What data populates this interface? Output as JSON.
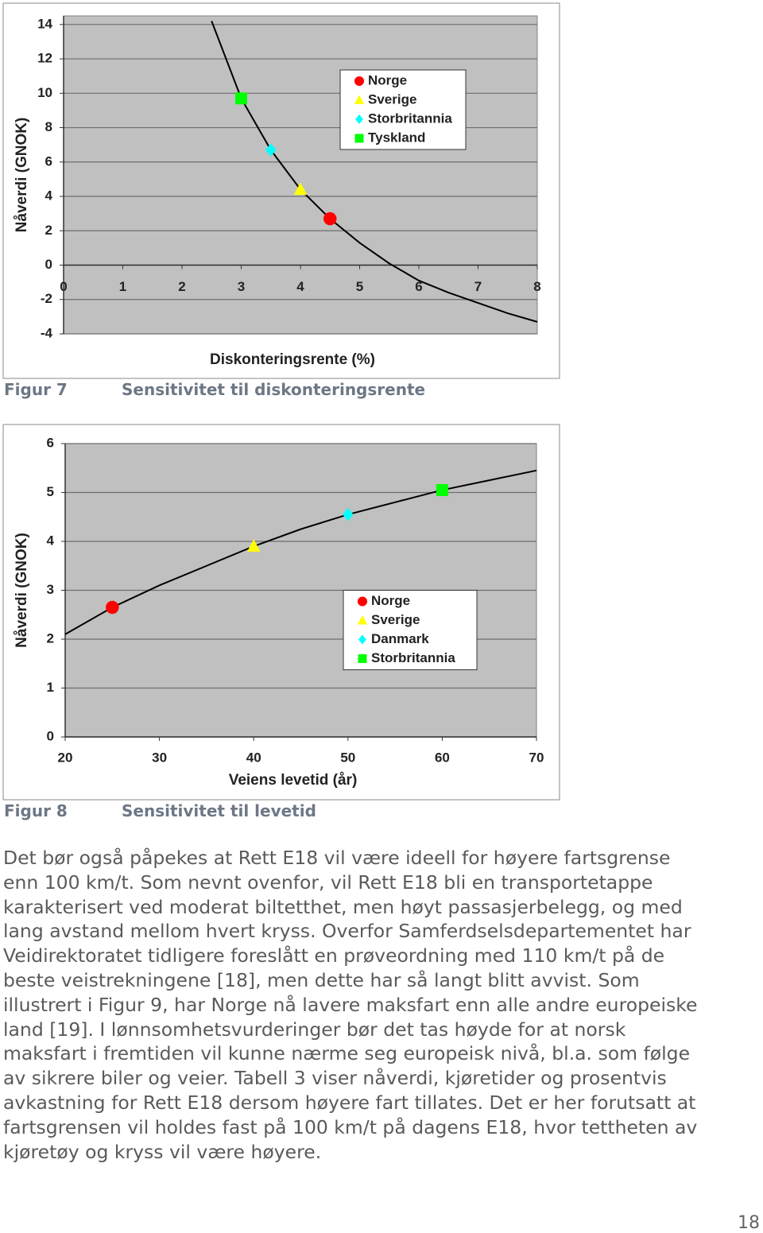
{
  "chart_data": [
    {
      "type": "scatter",
      "xlabel": "Diskonteringsrente (%)",
      "ylabel": "Nåverdi (GNOK)",
      "xlim": [
        0,
        8
      ],
      "xticks": [
        0,
        1,
        2,
        3,
        4,
        5,
        6,
        7,
        8
      ],
      "ylim": [
        -4,
        14.5
      ],
      "yticks": [
        -4,
        -2,
        0,
        2,
        4,
        6,
        8,
        10,
        12,
        14
      ],
      "grid": true,
      "legend": "upper right",
      "series": [
        {
          "name": "Norge",
          "color": "#ff0000",
          "marker": "circle",
          "x": [
            4.5
          ],
          "values": [
            2.7
          ]
        },
        {
          "name": "Sverige",
          "color": "#ffff00",
          "marker": "triangle",
          "x": [
            4
          ],
          "values": [
            4.4
          ]
        },
        {
          "name": "Storbritannia",
          "color": "#00ffff",
          "marker": "diamond",
          "x": [
            3.5
          ],
          "values": [
            6.7
          ]
        },
        {
          "name": "Tyskland",
          "color": "#00ff00",
          "marker": "square",
          "x": [
            3
          ],
          "values": [
            9.7
          ]
        }
      ],
      "curve": {
        "color": "#000000",
        "x": [
          2.5,
          3,
          3.5,
          4,
          4.5,
          5,
          5.5,
          6,
          6.5,
          7,
          7.5,
          8
        ],
        "values": [
          14.2,
          9.7,
          6.7,
          4.4,
          2.7,
          1.3,
          0.1,
          -0.9,
          -1.6,
          -2.2,
          -2.8,
          -3.3
        ]
      }
    },
    {
      "type": "scatter",
      "xlabel": "Veiens levetid (år)",
      "ylabel": "Nåverdi (GNOK)",
      "xlim": [
        20,
        70
      ],
      "xticks": [
        20,
        30,
        40,
        50,
        60,
        70
      ],
      "ylim": [
        0,
        6
      ],
      "yticks": [
        0,
        1,
        2,
        3,
        4,
        5,
        6
      ],
      "grid": true,
      "legend": "center right",
      "series": [
        {
          "name": "Norge",
          "color": "#ff0000",
          "marker": "circle",
          "x": [
            25
          ],
          "values": [
            2.65
          ]
        },
        {
          "name": "Sverige",
          "color": "#ffff00",
          "marker": "triangle",
          "x": [
            40
          ],
          "values": [
            3.9
          ]
        },
        {
          "name": "Danmark",
          "color": "#00ffff",
          "marker": "diamond",
          "x": [
            50
          ],
          "values": [
            4.55
          ]
        },
        {
          "name": "Storbritannia",
          "color": "#00ff00",
          "marker": "square",
          "x": [
            60
          ],
          "values": [
            5.05
          ]
        }
      ],
      "curve": {
        "color": "#000000",
        "x": [
          20,
          25,
          30,
          35,
          40,
          45,
          50,
          55,
          60,
          65,
          70
        ],
        "values": [
          2.1,
          2.65,
          3.1,
          3.5,
          3.9,
          4.25,
          4.55,
          4.8,
          5.05,
          5.25,
          5.45
        ]
      }
    }
  ],
  "captions": [
    {
      "label": "Figur 7",
      "text": "Sensitivitet til diskonteringsrente"
    },
    {
      "label": "Figur 8",
      "text": "Sensitivitet til levetid"
    }
  ],
  "paragraph_lines": [
    "Det bør også påpekes at Rett E18 vil være ideell for høyere fartsgrense",
    "enn 100 km/t. Som nevnt ovenfor, vil Rett E18 bli en transportetappe",
    "karakterisert ved moderat biltetthet, men høyt passasjerbelegg, og med",
    "lang avstand mellom hvert kryss. Overfor Samferdselsdepartementet har",
    "Veidirektoratet tidligere foreslått en prøveordning med 110 km/t på de",
    "beste veistrekningene [18], men dette har så langt blitt avvist. Som",
    "illustrert i Figur 9, har Norge nå lavere maksfart enn alle andre europeiske",
    "land [19]. I lønnsomhetsvurderinger bør det tas høyde for at norsk",
    "maksfart i fremtiden vil kunne nærme seg europeisk nivå, bl.a. som følge",
    "av sikrere biler og veier. Tabell 3 viser nåverdi, kjøretider og prosentvis",
    "avkastning for Rett E18 dersom høyere fart tillates. Det er her forutsatt at",
    "fartsgrensen vil holdes fast på 100 km/t på dagens E18, hvor tettheten av",
    "kjøretøy og kryss vil være høyere."
  ],
  "page_number": "18"
}
